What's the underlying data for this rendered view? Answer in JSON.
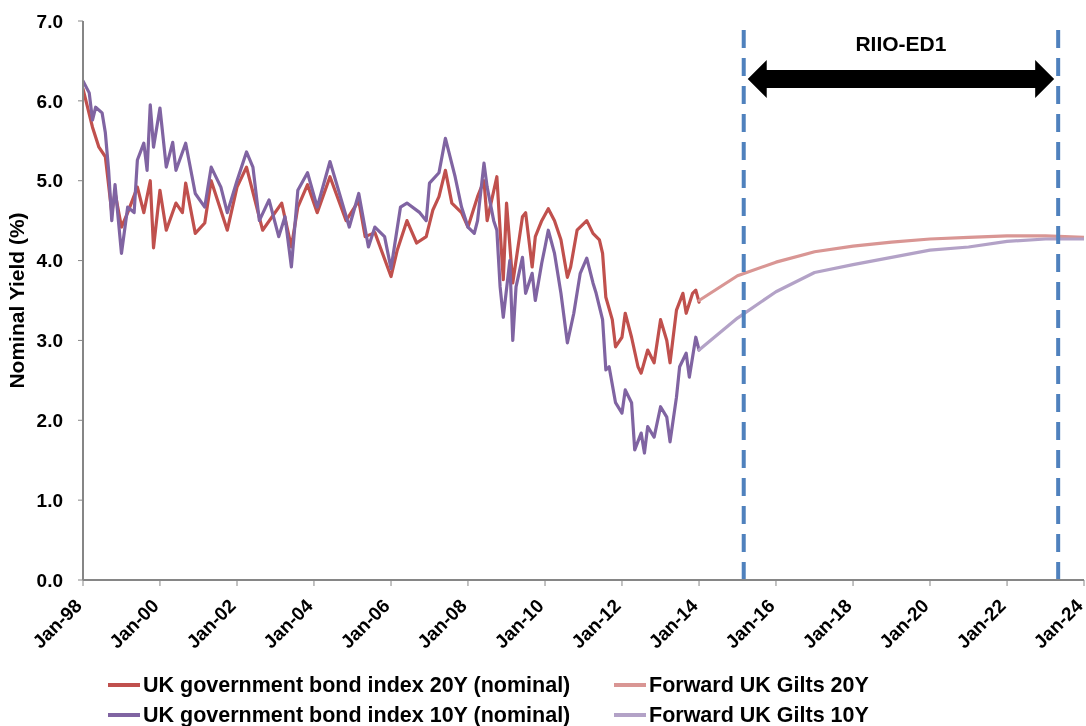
{
  "chart_data": {
    "type": "line",
    "ylabel": "Nominal Yield (%)",
    "xlim": [
      "1998-01",
      "2024-01"
    ],
    "xticks": [
      {
        "value": "1998-01",
        "label": "Jan-98"
      },
      {
        "value": "2000-01",
        "label": "Jan-00"
      },
      {
        "value": "2002-01",
        "label": "Jan-02"
      },
      {
        "value": "2004-01",
        "label": "Jan-04"
      },
      {
        "value": "2006-01",
        "label": "Jan-06"
      },
      {
        "value": "2008-01",
        "label": "Jan-08"
      },
      {
        "value": "2010-01",
        "label": "Jan-10"
      },
      {
        "value": "2012-01",
        "label": "Jan-12"
      },
      {
        "value": "2014-01",
        "label": "Jan-14"
      },
      {
        "value": "2016-01",
        "label": "Jan-16"
      },
      {
        "value": "2018-01",
        "label": "Jan-18"
      },
      {
        "value": "2020-01",
        "label": "Jan-20"
      },
      {
        "value": "2022-01",
        "label": "Jan-22"
      },
      {
        "value": "2024-01",
        "label": "Jan-24"
      }
    ],
    "ylim": [
      0,
      7
    ],
    "yticks": [
      {
        "value": 0,
        "label": "0.0"
      },
      {
        "value": 1,
        "label": "1.0"
      },
      {
        "value": 2,
        "label": "2.0"
      },
      {
        "value": 3,
        "label": "3.0"
      },
      {
        "value": 4,
        "label": "4.0"
      },
      {
        "value": 5,
        "label": "5.0"
      },
      {
        "value": 6,
        "label": "6.0"
      },
      {
        "value": 7,
        "label": "7.0"
      }
    ],
    "marker": "none",
    "line_style": "solid",
    "legend": "bottom",
    "series": [
      {
        "name": "UK government bond index 20Y (nominal)",
        "color": "#c0504d",
        "x": [
          "1998-01",
          "1998-04",
          "1998-06",
          "1998-08",
          "1998-10",
          "1998-11",
          "1999-01",
          "1999-03",
          "1999-06",
          "1999-08",
          "1999-10",
          "1999-11",
          "2000-01",
          "2000-03",
          "2000-06",
          "2000-08",
          "2000-09",
          "2000-12",
          "2001-03",
          "2001-05",
          "2001-10",
          "2002-01",
          "2002-04",
          "2002-09",
          "2003-03",
          "2003-06",
          "2003-08",
          "2003-11",
          "2004-02",
          "2004-06",
          "2004-11",
          "2005-03",
          "2005-05",
          "2005-08",
          "2006-01",
          "2006-03",
          "2006-06",
          "2006-09",
          "2006-12",
          "2007-02",
          "2007-04",
          "2007-06",
          "2007-08",
          "2007-11",
          "2008-01",
          "2008-04",
          "2008-06",
          "2008-07",
          "2008-10",
          "2008-11",
          "2008-12",
          "2009-01",
          "2009-03",
          "2009-06",
          "2009-07",
          "2009-09",
          "2009-10",
          "2009-12",
          "2010-02",
          "2010-04",
          "2010-06",
          "2010-08",
          "2010-09",
          "2010-11",
          "2011-02",
          "2011-04",
          "2011-06",
          "2011-07",
          "2011-08",
          "2011-10",
          "2011-11",
          "2012-01",
          "2012-02",
          "2012-04",
          "2012-06",
          "2012-07",
          "2012-09",
          "2012-11",
          "2013-01",
          "2013-03",
          "2013-04",
          "2013-06",
          "2013-08",
          "2013-09",
          "2013-11",
          "2013-12",
          "2014-01"
        ],
        "values": [
          6.15,
          5.67,
          5.42,
          5.3,
          4.6,
          4.85,
          4.42,
          4.6,
          4.92,
          4.6,
          5.0,
          4.16,
          4.88,
          4.38,
          4.72,
          4.6,
          4.97,
          4.34,
          4.47,
          5.0,
          4.38,
          4.92,
          5.17,
          4.38,
          4.72,
          4.17,
          4.67,
          4.95,
          4.6,
          5.05,
          4.5,
          4.75,
          4.3,
          4.35,
          3.8,
          4.13,
          4.5,
          4.22,
          4.3,
          4.63,
          4.8,
          5.13,
          4.72,
          4.6,
          4.42,
          4.8,
          5.0,
          4.5,
          5.05,
          4.38,
          3.76,
          4.72,
          3.72,
          4.55,
          4.6,
          3.92,
          4.3,
          4.5,
          4.65,
          4.5,
          4.26,
          3.79,
          3.92,
          4.38,
          4.5,
          4.34,
          4.26,
          4.09,
          3.54,
          3.26,
          2.92,
          3.04,
          3.34,
          3.04,
          2.67,
          2.59,
          2.88,
          2.72,
          3.26,
          3.0,
          2.72,
          3.38,
          3.59,
          3.34,
          3.59,
          3.63,
          3.48
        ]
      },
      {
        "name": "Forward UK Gilts 20Y",
        "color": "#d99694",
        "x": [
          "2014-01",
          "2015-01",
          "2016-01",
          "2017-01",
          "2018-01",
          "2019-01",
          "2020-01",
          "2021-01",
          "2022-01",
          "2023-01",
          "2024-01"
        ],
        "values": [
          3.5,
          3.81,
          3.98,
          4.11,
          4.18,
          4.23,
          4.27,
          4.29,
          4.31,
          4.31,
          4.29
        ]
      },
      {
        "name": "UK government bond index 10Y (nominal)",
        "color": "#8064a2",
        "x": [
          "1998-01",
          "1998-03",
          "1998-04",
          "1998-05",
          "1998-07",
          "1998-08",
          "1998-09",
          "1998-10",
          "1998-11",
          "1999-01",
          "1999-03",
          "1999-05",
          "1999-06",
          "1999-08",
          "1999-09",
          "1999-10",
          "1999-11",
          "2000-01",
          "2000-03",
          "2000-05",
          "2000-06",
          "2000-09",
          "2000-11",
          "2000-12",
          "2001-03",
          "2001-05",
          "2001-08",
          "2001-10",
          "2002-01",
          "2002-04",
          "2002-06",
          "2002-08",
          "2002-11",
          "2003-02",
          "2003-04",
          "2003-06",
          "2003-08",
          "2003-11",
          "2004-02",
          "2004-06",
          "2004-08",
          "2004-12",
          "2005-03",
          "2005-06",
          "2005-08",
          "2005-11",
          "2006-01",
          "2006-04",
          "2006-06",
          "2006-10",
          "2006-12",
          "2007-01",
          "2007-04",
          "2007-06",
          "2007-09",
          "2007-11",
          "2008-01",
          "2008-03",
          "2008-04",
          "2008-06",
          "2008-07",
          "2008-09",
          "2008-10",
          "2008-11",
          "2008-12",
          "2009-02",
          "2009-03",
          "2009-04",
          "2009-06",
          "2009-07",
          "2009-09",
          "2009-10",
          "2009-12",
          "2010-01",
          "2010-02",
          "2010-04",
          "2010-06",
          "2010-08",
          "2010-10",
          "2010-12",
          "2011-02",
          "2011-04",
          "2011-05",
          "2011-07",
          "2011-08",
          "2011-09",
          "2011-11",
          "2012-01",
          "2012-02",
          "2012-04",
          "2012-05",
          "2012-07",
          "2012-08",
          "2012-09",
          "2012-11",
          "2013-01",
          "2013-03",
          "2013-04",
          "2013-06",
          "2013-07",
          "2013-09",
          "2013-10",
          "2013-12",
          "2014-01"
        ],
        "values": [
          6.25,
          6.1,
          5.76,
          5.92,
          5.85,
          5.6,
          5.13,
          4.5,
          4.95,
          4.09,
          4.67,
          4.6,
          5.26,
          5.47,
          5.13,
          5.95,
          5.42,
          5.91,
          5.17,
          5.48,
          5.13,
          5.47,
          5.05,
          4.84,
          4.67,
          5.17,
          4.92,
          4.6,
          5.0,
          5.36,
          5.17,
          4.5,
          4.76,
          4.3,
          4.55,
          3.92,
          4.88,
          5.1,
          4.67,
          5.24,
          4.97,
          4.42,
          4.84,
          4.17,
          4.42,
          4.3,
          3.9,
          4.67,
          4.72,
          4.6,
          4.5,
          4.97,
          5.1,
          5.53,
          5.05,
          4.67,
          4.42,
          4.34,
          4.5,
          5.22,
          4.92,
          4.5,
          4.38,
          3.67,
          3.29,
          4.0,
          3.0,
          3.67,
          4.04,
          3.59,
          3.84,
          3.5,
          3.97,
          4.17,
          4.38,
          4.09,
          3.59,
          2.97,
          3.34,
          3.84,
          4.03,
          3.72,
          3.59,
          3.26,
          2.63,
          2.67,
          2.22,
          2.09,
          2.38,
          2.22,
          1.63,
          1.84,
          1.59,
          1.92,
          1.79,
          2.17,
          2.04,
          1.73,
          2.29,
          2.67,
          2.84,
          2.54,
          3.04,
          2.88
        ]
      },
      {
        "name": "Forward UK Gilts 10Y",
        "color": "#b3a2c7",
        "x": [
          "2014-01",
          "2015-01",
          "2016-01",
          "2017-01",
          "2018-01",
          "2019-01",
          "2020-01",
          "2021-01",
          "2022-01",
          "2023-01",
          "2024-01"
        ],
        "values": [
          2.88,
          3.28,
          3.61,
          3.85,
          3.95,
          4.04,
          4.13,
          4.17,
          4.24,
          4.27,
          4.27
        ]
      }
    ],
    "ref_lines": [
      {
        "axis": "x",
        "value": "2015-03",
        "color": "#4f81bd",
        "line_style": "dashed"
      },
      {
        "axis": "x",
        "value": "2023-05",
        "color": "#4f81bd",
        "line_style": "dashed"
      }
    ],
    "annotations": [
      "RIIO-ED1"
    ]
  }
}
